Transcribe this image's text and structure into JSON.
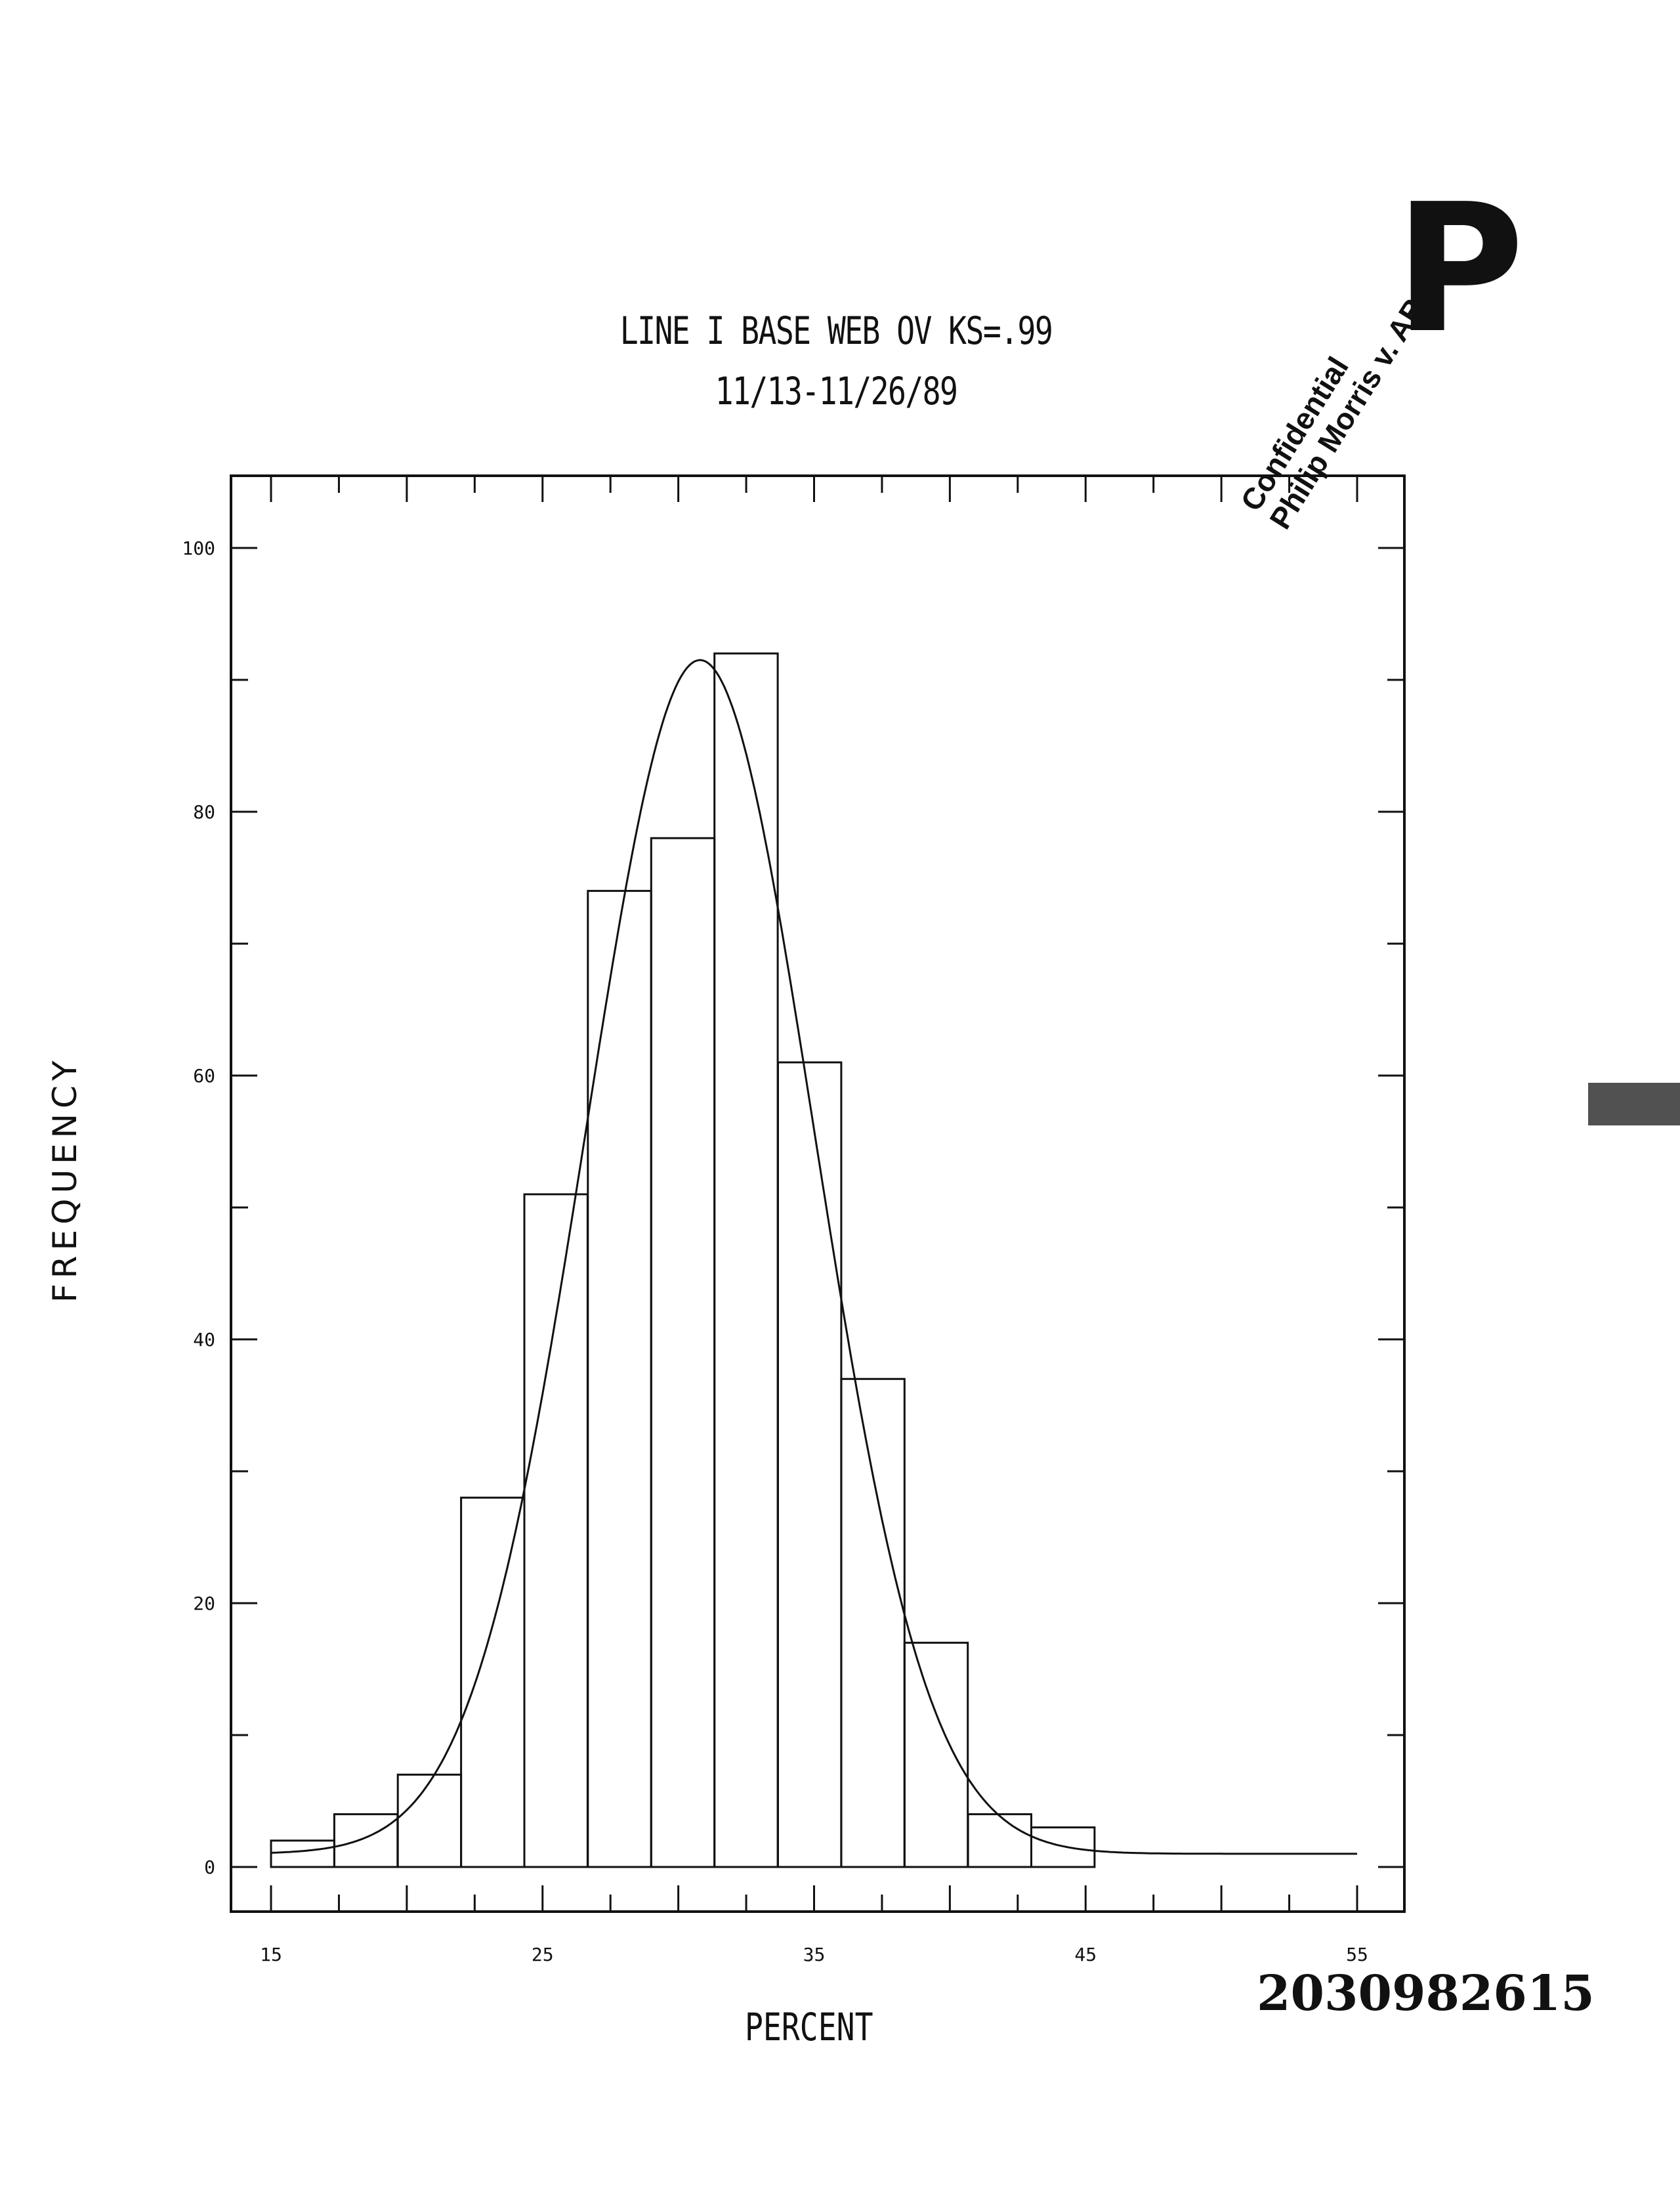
{
  "chart_data": {
    "type": "bar",
    "title": "LINE I BASE WEB OV KS=.99",
    "subtitle": "11/13-11/26/89",
    "xlabel": "PERCENT",
    "ylabel": "FREQUENCY",
    "xlim": [
      15,
      55
    ],
    "ylim": [
      0,
      100
    ],
    "x_ticks": [
      "15",
      "25",
      "35",
      "45",
      "55"
    ],
    "y_ticks": [
      "0",
      "20",
      "40",
      "60",
      "80",
      "100"
    ],
    "bin_width": 2.33,
    "bin_starts": [
      15.0,
      17.33,
      19.67,
      22.0,
      24.33,
      26.67,
      29.0,
      31.33,
      33.67,
      36.0,
      38.33,
      40.67,
      43.0
    ],
    "values": [
      2,
      4,
      7,
      28,
      51,
      74,
      78,
      92,
      61,
      37,
      17,
      4,
      3
    ],
    "fit_curve": {
      "type": "normal",
      "mean": 30.8,
      "peak": 91.5,
      "sd": 4.2,
      "x_range": [
        15,
        55
      ],
      "baseline_offset": 1
    },
    "grid": false
  },
  "stamp": {
    "letter": "P",
    "line1": "Confidential",
    "line2": "Philip Morris v. ABC"
  },
  "document_number": "2030982615"
}
